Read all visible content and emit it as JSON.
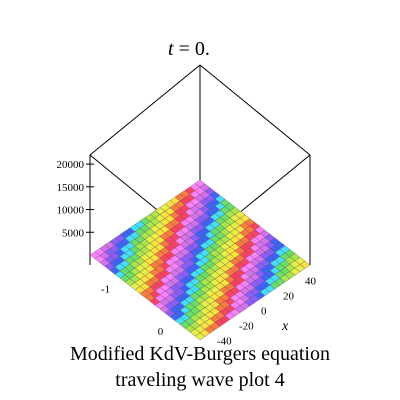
{
  "header": {
    "time_var": "t",
    "time_value": " = 0."
  },
  "caption": {
    "line1": "Modified KdV-Burgers  equation",
    "line2": "traveling wave plot 4"
  },
  "chart_data": {
    "type": "surface3d",
    "title": "",
    "zaxis": {
      "ticks": [
        5000,
        10000,
        15000,
        20000
      ],
      "range": [
        0,
        22000
      ]
    },
    "xaxis": {
      "label": "x",
      "ticks": [
        -40,
        -20,
        0,
        20,
        40
      ],
      "range": [
        -50,
        50
      ]
    },
    "yaxis": {
      "label": "",
      "ticks": [
        -1,
        0
      ],
      "range": [
        -1.5,
        0.5
      ]
    },
    "colors": {
      "bands": [
        "#ff80ff",
        "#d670f0",
        "#8c5cff",
        "#3d63ff",
        "#40e0ff",
        "#66e066",
        "#a8e84a",
        "#e8f046",
        "#ffe23c",
        "#ff7a3c",
        "#ff4060"
      ]
    }
  }
}
